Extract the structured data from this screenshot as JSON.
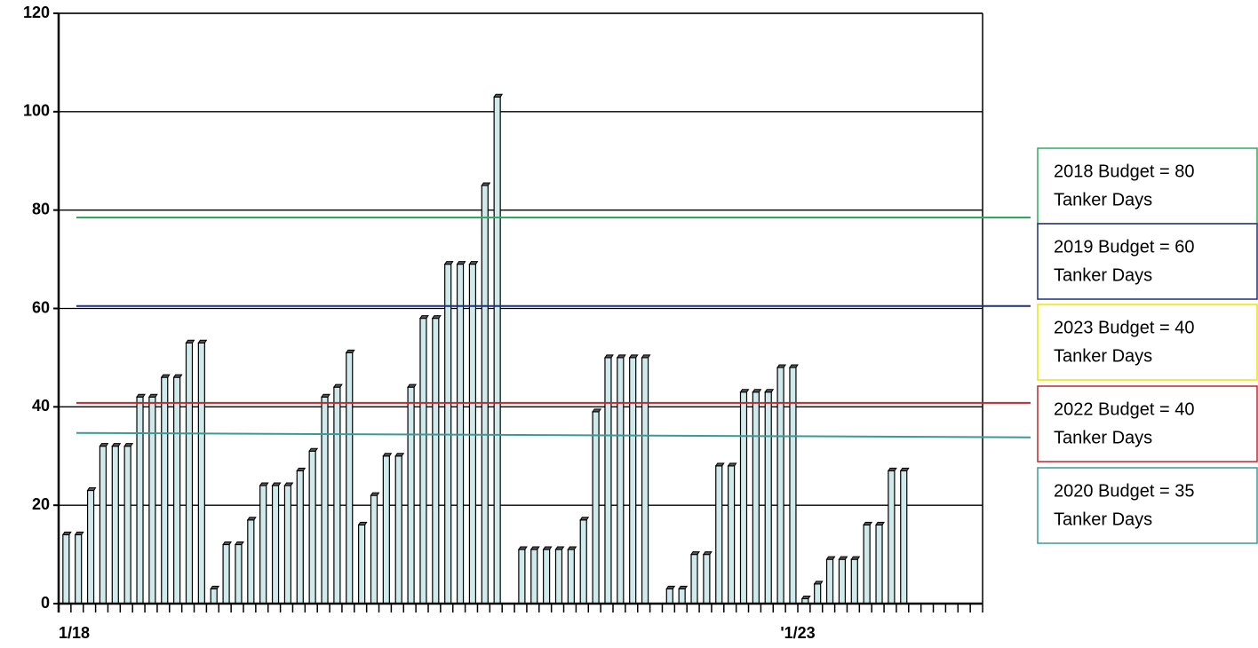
{
  "chart_data": {
    "type": "bar",
    "categories": [
      "1/18",
      null,
      null,
      null,
      null,
      null,
      null,
      null,
      null,
      null,
      null,
      null,
      null,
      null,
      null,
      null,
      null,
      null,
      null,
      null,
      null,
      null,
      null,
      null,
      null,
      null,
      null,
      null,
      null,
      null,
      null,
      null,
      null,
      null,
      null,
      null,
      null,
      null,
      null,
      null,
      null,
      null,
      null,
      null,
      null,
      null,
      null,
      null,
      null,
      null,
      null,
      null,
      null,
      null,
      null,
      null,
      null,
      null,
      null,
      null,
      "'1/23",
      null,
      null,
      null,
      null,
      null,
      null,
      null,
      null,
      null,
      null,
      null,
      null,
      null,
      null
    ],
    "values": [
      14,
      14,
      23,
      32,
      32,
      32,
      42,
      42,
      46,
      46,
      53,
      53,
      3,
      12,
      12,
      17,
      24,
      24,
      24,
      27,
      31,
      42,
      44,
      51,
      16,
      22,
      30,
      30,
      44,
      58,
      58,
      69,
      69,
      69,
      85,
      103,
      0,
      11,
      11,
      11,
      11,
      11,
      17,
      39,
      50,
      50,
      50,
      50,
      0,
      3,
      3,
      10,
      10,
      28,
      28,
      43,
      43,
      43,
      48,
      48,
      1,
      4,
      9,
      9,
      9,
      16,
      16,
      27,
      27,
      0,
      0,
      0,
      0,
      0,
      0
    ],
    "color": "#cfeaea",
    "ylim": [
      0,
      120
    ],
    "yticks": [
      0,
      20,
      40,
      60,
      80,
      100,
      120
    ],
    "grid": true,
    "budget_lines": [
      {
        "text": [
          "2018 Budget = 80",
          "Tanker Days"
        ],
        "color": "#2eaa5e",
        "values": [
          78.5,
          78.5
        ]
      },
      {
        "text": [
          "2019 Budget = 60",
          "Tanker Days"
        ],
        "color": "#1f2f7a",
        "values": [
          60.5,
          60.5
        ]
      },
      {
        "text": [
          "2023 Budget = 40",
          "Tanker Days"
        ],
        "color": "#e8e800"
      },
      {
        "text": [
          "2022 Budget = 40",
          "Tanker Days"
        ],
        "color": "#c0282d",
        "values": [
          40.8,
          40.8
        ]
      },
      {
        "text": [
          "2020 Budget = 35",
          "Tanker Days"
        ],
        "color": "#3a9a96",
        "values": [
          34.7,
          33.8
        ]
      }
    ]
  }
}
